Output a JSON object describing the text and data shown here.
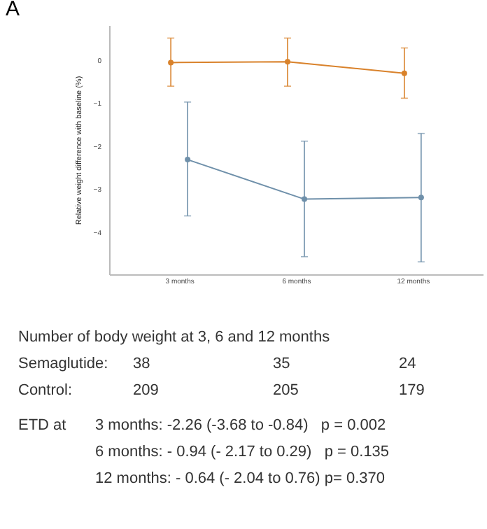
{
  "chart_data": {
    "type": "line",
    "title": "A",
    "ylabel": "Relative weight difference with baseline (%)",
    "categories": [
      "3 months",
      "6 months",
      "12 months"
    ],
    "ylim": [
      -5,
      0.8
    ],
    "yticks": [
      0,
      -1,
      -2,
      -3,
      -4
    ],
    "grid": false,
    "marker": "circle",
    "series": [
      {
        "color": "#d9822b",
        "values": [
          -0.07,
          -0.05,
          -0.32
        ],
        "errors": [
          [
            -0.62,
            0.5
          ],
          [
            -0.62,
            0.5
          ],
          [
            -0.9,
            0.27
          ]
        ]
      },
      {
        "color": "#6f90aa",
        "values": [
          -2.33,
          -3.25,
          -3.21
        ],
        "errors": [
          [
            -3.64,
            -0.99
          ],
          [
            -4.59,
            -1.9
          ],
          [
            -4.71,
            -1.72
          ]
        ]
      }
    ],
    "annotations": [
      "Number of body weight at 3, 6 and 12 months",
      "Semaglutide:\t38\t35\t24",
      "Control:\t209\t205\t179",
      "ETD at\t3 months: -2.26 (-3.68 to -0.84)   p = 0.002",
      "\t6 months: - 0.94 (- 2.17 to 0.29)   p = 0.135",
      "\t12 months: - 0.64 (- 2.04 to 0.76) p= 0.370"
    ]
  }
}
